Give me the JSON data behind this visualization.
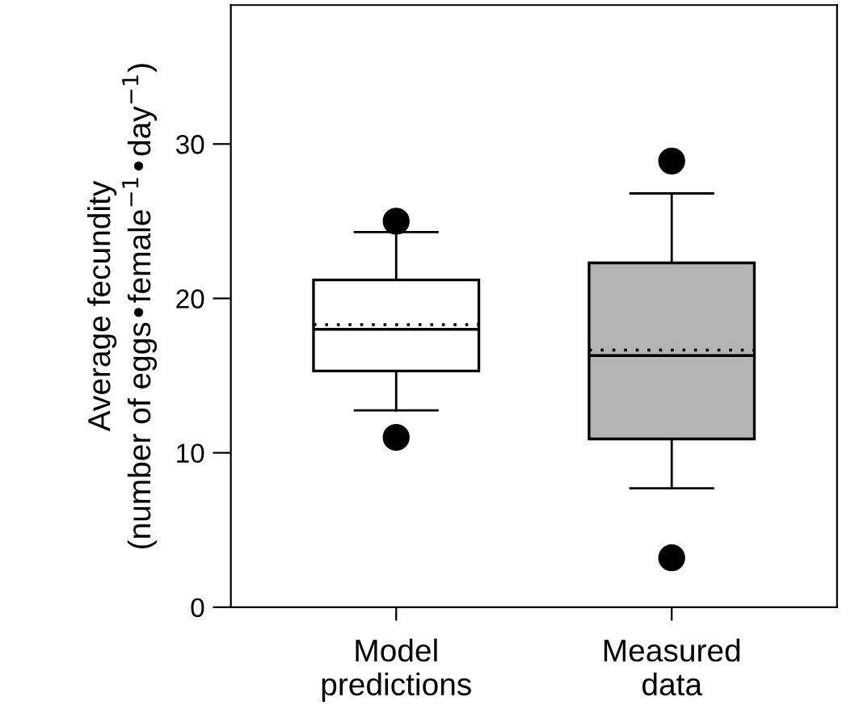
{
  "chart_data": {
    "type": "box",
    "ylabel": "Average fecundity\n(number of eggs•female$^{−1}$•day$^{−1}$)",
    "categories": [
      "Model\npredictions",
      "Measured\ndata"
    ],
    "colors": [
      "#ffffff",
      "#b4b4b4"
    ],
    "boxes": [
      {
        "low": 12.75,
        "q1": 15.3,
        "median": 18.0,
        "q3": 21.2,
        "high": 24.3,
        "mean": 18.3,
        "outliers": [
          25.0,
          11.0
        ]
      },
      {
        "low": 7.7,
        "q1": 10.9,
        "median": 16.3,
        "q3": 22.3,
        "high": 26.8,
        "mean": 16.65,
        "outliers": [
          28.9,
          3.2
        ]
      }
    ],
    "ylim": [
      0,
      39
    ],
    "yticks": [
      0,
      10,
      20,
      30
    ],
    "grid": false
  }
}
